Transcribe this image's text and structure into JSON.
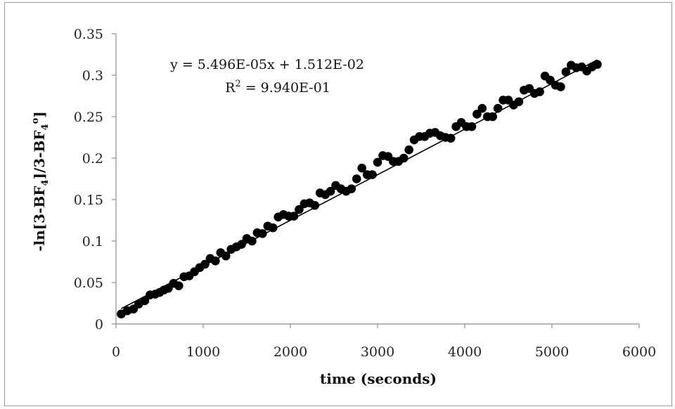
{
  "chart_data": {
    "type": "scatter",
    "title": "",
    "xlabel": "time (seconds)",
    "ylabel_parts": {
      "pre": "-ln[3-BF",
      "sub1": "4",
      "mid": "]/3-BF",
      "sub2": "4",
      "sup": "o",
      "post": "]"
    },
    "xlim": [
      0,
      6000
    ],
    "ylim": [
      0,
      0.35
    ],
    "xticks": [
      0,
      1000,
      2000,
      3000,
      4000,
      5000,
      6000
    ],
    "yticks": [
      0,
      0.05,
      0.1,
      0.15,
      0.2,
      0.25,
      0.3,
      0.35
    ],
    "xtick_labels": [
      "0",
      "1000",
      "2000",
      "3000",
      "4000",
      "5000",
      "6000"
    ],
    "ytick_labels": [
      "0",
      "0.05",
      "0.1",
      "0.15",
      "0.2",
      "0.25",
      "0.3",
      "0.35"
    ],
    "grid": false,
    "legend": "none",
    "marker_color": "#000000",
    "trendline": {
      "slope": 5.496e-05,
      "intercept": 0.01512,
      "equation": "y = 5.496E-05x + 1.512E-02",
      "r2_prefix": "R",
      "r2_exp": "2",
      "r2_value": " = 9.940E-01"
    },
    "series": [
      {
        "x": [
          60,
          130,
          200,
          260,
          330,
          390,
          450,
          500,
          550,
          600,
          660,
          720,
          780,
          840,
          900,
          960,
          1020,
          1080,
          1140,
          1200,
          1260,
          1320,
          1380,
          1440,
          1500,
          1560,
          1620,
          1680,
          1740,
          1800,
          1860,
          1920,
          1980,
          2040,
          2100,
          2160,
          2220,
          2280,
          2340,
          2400,
          2460,
          2520,
          2580,
          2640,
          2700,
          2760,
          2820,
          2880,
          2940,
          3000,
          3060,
          3120,
          3180,
          3240,
          3300,
          3360,
          3420,
          3480,
          3540,
          3600,
          3660,
          3720,
          3780,
          3840,
          3900,
          3960,
          4020,
          4080,
          4140,
          4200,
          4260,
          4320,
          4380,
          4440,
          4500,
          4560,
          4620,
          4680,
          4740,
          4800,
          4860,
          4920,
          4980,
          5040,
          5100,
          5160,
          5220,
          5280,
          5340,
          5400,
          5460,
          5520
        ],
        "y": [
          0.012,
          0.016,
          0.018,
          0.024,
          0.028,
          0.035,
          0.036,
          0.038,
          0.041,
          0.043,
          0.049,
          0.046,
          0.057,
          0.058,
          0.063,
          0.068,
          0.072,
          0.079,
          0.076,
          0.086,
          0.082,
          0.09,
          0.093,
          0.096,
          0.103,
          0.1,
          0.11,
          0.109,
          0.118,
          0.116,
          0.129,
          0.132,
          0.13,
          0.13,
          0.138,
          0.145,
          0.146,
          0.143,
          0.158,
          0.156,
          0.16,
          0.167,
          0.163,
          0.16,
          0.163,
          0.175,
          0.188,
          0.18,
          0.18,
          0.195,
          0.203,
          0.202,
          0.196,
          0.196,
          0.2,
          0.21,
          0.222,
          0.226,
          0.226,
          0.23,
          0.231,
          0.227,
          0.225,
          0.224,
          0.238,
          0.243,
          0.238,
          0.238,
          0.253,
          0.26,
          0.25,
          0.25,
          0.26,
          0.27,
          0.27,
          0.264,
          0.268,
          0.282,
          0.284,
          0.278,
          0.28,
          0.299,
          0.294,
          0.288,
          0.286,
          0.304,
          0.312,
          0.309,
          0.31,
          0.305,
          0.31,
          0.313
        ]
      }
    ]
  }
}
